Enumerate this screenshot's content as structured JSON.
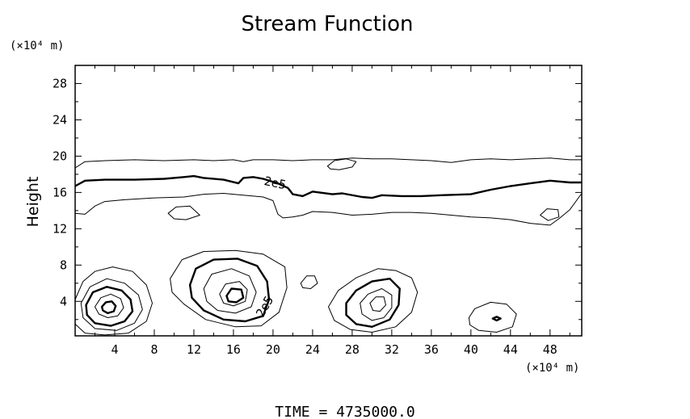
{
  "chart_data": {
    "type": "contour",
    "title": "Stream Function",
    "xlabel": "",
    "ylabel": "Height",
    "x_unit_label": "(×10⁴ m)",
    "y_unit_label": "(×10⁴ m)",
    "xlim": [
      0,
      51.2
    ],
    "ylim": [
      0.2,
      30
    ],
    "x_ticks": [
      4,
      8,
      12,
      16,
      20,
      24,
      28,
      32,
      36,
      40,
      44,
      48
    ],
    "y_ticks": [
      4,
      8,
      12,
      16,
      20,
      24,
      28
    ],
    "x_tick_labels": [
      "4",
      "8",
      "12",
      "16",
      "20",
      "24",
      "28",
      "32",
      "36",
      "40",
      "44",
      "48"
    ],
    "y_tick_labels": [
      "4",
      "8",
      "12",
      "16",
      "20",
      "24",
      "28"
    ],
    "contour_labels": [
      {
        "text": "2e5",
        "x": 20.2,
        "y": 17.0,
        "rotate": 12
      },
      {
        "text": "2e5",
        "x": 19.2,
        "y": 3.4,
        "rotate": -60
      }
    ],
    "footer": "TIME  =  4735000.0",
    "contours": [
      {
        "bold": false,
        "points": [
          [
            0,
            18.7
          ],
          [
            1,
            19.4
          ],
          [
            3,
            19.5
          ],
          [
            6,
            19.6
          ],
          [
            9,
            19.5
          ],
          [
            12,
            19.6
          ],
          [
            14,
            19.5
          ],
          [
            16,
            19.6
          ],
          [
            17,
            19.4
          ],
          [
            18,
            19.6
          ],
          [
            20,
            19.6
          ],
          [
            22,
            19.5
          ],
          [
            24,
            19.6
          ],
          [
            26,
            19.6
          ],
          [
            28,
            19.8
          ],
          [
            30,
            19.7
          ],
          [
            32,
            19.7
          ],
          [
            34,
            19.6
          ],
          [
            36,
            19.5
          ],
          [
            38,
            19.3
          ],
          [
            40,
            19.6
          ],
          [
            42,
            19.7
          ],
          [
            44,
            19.6
          ],
          [
            46,
            19.7
          ],
          [
            48,
            19.8
          ],
          [
            50,
            19.6
          ],
          [
            51.2,
            19.6
          ]
        ]
      },
      {
        "bold": false,
        "closed": true,
        "points": [
          [
            25.5,
            18.9
          ],
          [
            26.2,
            19.5
          ],
          [
            27.4,
            19.7
          ],
          [
            28.4,
            19.4
          ],
          [
            28.0,
            18.8
          ],
          [
            26.7,
            18.5
          ],
          [
            25.8,
            18.6
          ]
        ]
      },
      {
        "bold": true,
        "points": [
          [
            0,
            16.7
          ],
          [
            1,
            17.3
          ],
          [
            3,
            17.4
          ],
          [
            6,
            17.4
          ],
          [
            9,
            17.5
          ],
          [
            11,
            17.7
          ],
          [
            12,
            17.8
          ],
          [
            13,
            17.6
          ],
          [
            15,
            17.4
          ],
          [
            16.5,
            17.0
          ],
          [
            17,
            17.6
          ],
          [
            18,
            17.7
          ],
          [
            19,
            17.5
          ],
          [
            20.5,
            17.0
          ],
          [
            21.5,
            16.5
          ],
          [
            22,
            15.8
          ],
          [
            23,
            15.6
          ],
          [
            24,
            16.1
          ],
          [
            26,
            15.8
          ],
          [
            27,
            15.9
          ],
          [
            29,
            15.5
          ],
          [
            30,
            15.4
          ],
          [
            31,
            15.7
          ],
          [
            33,
            15.6
          ],
          [
            35,
            15.6
          ],
          [
            37,
            15.7
          ],
          [
            40,
            15.8
          ],
          [
            42,
            16.3
          ],
          [
            44,
            16.7
          ],
          [
            46,
            17.0
          ],
          [
            48,
            17.3
          ],
          [
            50,
            17.1
          ],
          [
            51.2,
            17.1
          ]
        ]
      },
      {
        "bold": false,
        "points": [
          [
            0,
            13.7
          ],
          [
            1,
            13.6
          ],
          [
            2,
            14.5
          ],
          [
            3,
            15.0
          ],
          [
            5,
            15.2
          ],
          [
            8,
            15.4
          ],
          [
            11,
            15.5
          ],
          [
            13,
            15.8
          ],
          [
            15,
            15.9
          ],
          [
            17,
            15.7
          ],
          [
            19,
            15.5
          ],
          [
            20,
            15.1
          ],
          [
            20.5,
            13.6
          ],
          [
            21,
            13.2
          ],
          [
            22,
            13.3
          ],
          [
            23,
            13.5
          ],
          [
            24,
            13.9
          ],
          [
            26,
            13.8
          ],
          [
            28,
            13.5
          ],
          [
            30,
            13.6
          ],
          [
            32,
            13.8
          ],
          [
            34,
            13.8
          ],
          [
            36,
            13.7
          ],
          [
            38,
            13.5
          ],
          [
            40,
            13.3
          ],
          [
            42,
            13.2
          ],
          [
            44,
            13.0
          ],
          [
            46,
            12.6
          ],
          [
            48,
            12.4
          ],
          [
            49,
            13.2
          ],
          [
            50,
            14.1
          ],
          [
            51.2,
            15.9
          ]
        ]
      },
      {
        "bold": false,
        "closed": true,
        "points": [
          [
            9.4,
            13.7
          ],
          [
            10.2,
            14.4
          ],
          [
            11.6,
            14.5
          ],
          [
            12.6,
            13.5
          ],
          [
            11.2,
            13.0
          ],
          [
            10.0,
            13.1
          ]
        ]
      },
      {
        "bold": false,
        "closed": true,
        "points": [
          [
            47.0,
            13.5
          ],
          [
            47.7,
            14.2
          ],
          [
            48.8,
            14.1
          ],
          [
            48.9,
            13.3
          ],
          [
            47.8,
            12.9
          ]
        ]
      },
      {
        "bold": false,
        "closed": true,
        "points": [
          [
            0,
            4.2
          ],
          [
            0.8,
            6.2
          ],
          [
            2,
            7.3
          ],
          [
            3.8,
            7.8
          ],
          [
            5.8,
            7.3
          ],
          [
            7.2,
            5.8
          ],
          [
            7.8,
            3.8
          ],
          [
            7.2,
            1.8
          ],
          [
            5.4,
            0.5
          ],
          [
            3,
            0.3
          ],
          [
            1,
            0.5
          ],
          [
            0,
            1.5
          ]
        ]
      },
      {
        "bold": false,
        "closed": true,
        "points": [
          [
            0.6,
            3.8
          ],
          [
            1.5,
            5.6
          ],
          [
            3.2,
            6.5
          ],
          [
            5.0,
            6.0
          ],
          [
            6.4,
            4.7
          ],
          [
            6.8,
            3.1
          ],
          [
            6.0,
            1.6
          ],
          [
            4.2,
            0.8
          ],
          [
            2.0,
            1.0
          ],
          [
            0.8,
            2.2
          ]
        ]
      },
      {
        "bold": true,
        "closed": true,
        "points": [
          [
            1.1,
            3.6
          ],
          [
            1.8,
            5.0
          ],
          [
            3.2,
            5.6
          ],
          [
            4.7,
            5.2
          ],
          [
            5.6,
            4.2
          ],
          [
            5.8,
            2.9
          ],
          [
            5.0,
            1.8
          ],
          [
            3.6,
            1.3
          ],
          [
            2.0,
            1.6
          ],
          [
            1.2,
            2.5
          ]
        ]
      },
      {
        "bold": false,
        "closed": true,
        "points": [
          [
            2.0,
            3.4
          ],
          [
            2.6,
            4.4
          ],
          [
            3.6,
            4.8
          ],
          [
            4.6,
            4.3
          ],
          [
            4.9,
            3.3
          ],
          [
            4.3,
            2.4
          ],
          [
            3.3,
            2.2
          ],
          [
            2.4,
            2.6
          ]
        ]
      },
      {
        "bold": true,
        "closed": true,
        "points": [
          [
            2.7,
            3.4
          ],
          [
            3.1,
            3.9
          ],
          [
            3.7,
            4.0
          ],
          [
            4.1,
            3.5
          ],
          [
            3.9,
            2.9
          ],
          [
            3.3,
            2.7
          ],
          [
            2.8,
            3.0
          ]
        ]
      },
      {
        "bold": false,
        "closed": true,
        "points": [
          [
            9.6,
            6.5
          ],
          [
            10.8,
            8.6
          ],
          [
            13.0,
            9.5
          ],
          [
            16.2,
            9.6
          ],
          [
            19.0,
            9.2
          ],
          [
            21.2,
            7.8
          ],
          [
            21.4,
            5.5
          ],
          [
            20.6,
            2.8
          ],
          [
            18.8,
            1.3
          ],
          [
            16.2,
            1.2
          ],
          [
            13.2,
            2.0
          ],
          [
            11.0,
            3.7
          ],
          [
            9.8,
            5.0
          ]
        ]
      },
      {
        "bold": true,
        "closed": true,
        "points": [
          [
            11.6,
            5.8
          ],
          [
            12.2,
            7.6
          ],
          [
            14.0,
            8.6
          ],
          [
            16.4,
            8.7
          ],
          [
            18.4,
            7.9
          ],
          [
            19.4,
            6.2
          ],
          [
            19.6,
            4.2
          ],
          [
            19.0,
            2.4
          ],
          [
            17.2,
            1.8
          ],
          [
            15.0,
            2.0
          ],
          [
            13.0,
            3.0
          ],
          [
            11.8,
            4.4
          ]
        ]
      },
      {
        "bold": false,
        "closed": true,
        "points": [
          [
            13.0,
            5.4
          ],
          [
            13.8,
            7.0
          ],
          [
            15.8,
            7.6
          ],
          [
            17.6,
            6.8
          ],
          [
            18.3,
            5.0
          ],
          [
            17.8,
            3.4
          ],
          [
            16.2,
            2.7
          ],
          [
            14.4,
            3.0
          ],
          [
            13.3,
            4.0
          ]
        ]
      },
      {
        "bold": false,
        "closed": true,
        "points": [
          [
            14.6,
            4.8
          ],
          [
            15.2,
            5.9
          ],
          [
            16.6,
            6.2
          ],
          [
            17.4,
            5.3
          ],
          [
            17.2,
            4.0
          ],
          [
            16.0,
            3.5
          ],
          [
            15.0,
            3.8
          ]
        ]
      },
      {
        "bold": true,
        "closed": true,
        "points": [
          [
            15.3,
            4.6
          ],
          [
            15.8,
            5.4
          ],
          [
            16.8,
            5.3
          ],
          [
            17.0,
            4.4
          ],
          [
            16.3,
            3.9
          ],
          [
            15.5,
            4.0
          ]
        ]
      },
      {
        "bold": false,
        "closed": true,
        "points": [
          [
            22.8,
            6.0
          ],
          [
            23.4,
            6.8
          ],
          [
            24.2,
            6.8
          ],
          [
            24.5,
            6.0
          ],
          [
            23.8,
            5.4
          ],
          [
            23.0,
            5.5
          ]
        ]
      },
      {
        "bold": false,
        "closed": true,
        "points": [
          [
            25.6,
            3.4
          ],
          [
            26.6,
            5.2
          ],
          [
            28.4,
            6.6
          ],
          [
            30.6,
            7.6
          ],
          [
            32.4,
            7.4
          ],
          [
            34.0,
            6.6
          ],
          [
            34.6,
            5.0
          ],
          [
            34.0,
            2.8
          ],
          [
            32.4,
            1.2
          ],
          [
            30.0,
            0.6
          ],
          [
            27.8,
            0.9
          ],
          [
            26.2,
            1.9
          ]
        ]
      },
      {
        "bold": true,
        "closed": true,
        "points": [
          [
            27.4,
            3.8
          ],
          [
            28.4,
            5.2
          ],
          [
            30.0,
            6.2
          ],
          [
            31.8,
            6.5
          ],
          [
            32.8,
            5.4
          ],
          [
            32.7,
            3.6
          ],
          [
            31.8,
            2.0
          ],
          [
            30.0,
            1.2
          ],
          [
            28.4,
            1.5
          ],
          [
            27.4,
            2.5
          ]
        ]
      },
      {
        "bold": false,
        "closed": true,
        "points": [
          [
            28.8,
            3.8
          ],
          [
            29.6,
            4.8
          ],
          [
            31.0,
            5.4
          ],
          [
            32.0,
            4.7
          ],
          [
            32.0,
            3.3
          ],
          [
            31.2,
            2.2
          ],
          [
            30.0,
            1.9
          ],
          [
            29.0,
            2.6
          ]
        ]
      },
      {
        "bold": false,
        "closed": true,
        "points": [
          [
            29.8,
            3.8
          ],
          [
            30.4,
            4.5
          ],
          [
            31.2,
            4.5
          ],
          [
            31.4,
            3.6
          ],
          [
            30.8,
            2.9
          ],
          [
            30.1,
            3.0
          ]
        ]
      },
      {
        "bold": false,
        "closed": true,
        "points": [
          [
            39.8,
            2.2
          ],
          [
            40.4,
            3.2
          ],
          [
            42.0,
            3.9
          ],
          [
            43.6,
            3.7
          ],
          [
            44.6,
            2.6
          ],
          [
            44.2,
            1.2
          ],
          [
            42.6,
            0.6
          ],
          [
            40.8,
            0.8
          ],
          [
            39.9,
            1.4
          ]
        ]
      },
      {
        "bold": true,
        "closed": true,
        "points": [
          [
            42.2,
            2.1
          ],
          [
            42.6,
            2.3
          ],
          [
            43.0,
            2.1
          ],
          [
            42.6,
            1.9
          ]
        ]
      }
    ]
  }
}
